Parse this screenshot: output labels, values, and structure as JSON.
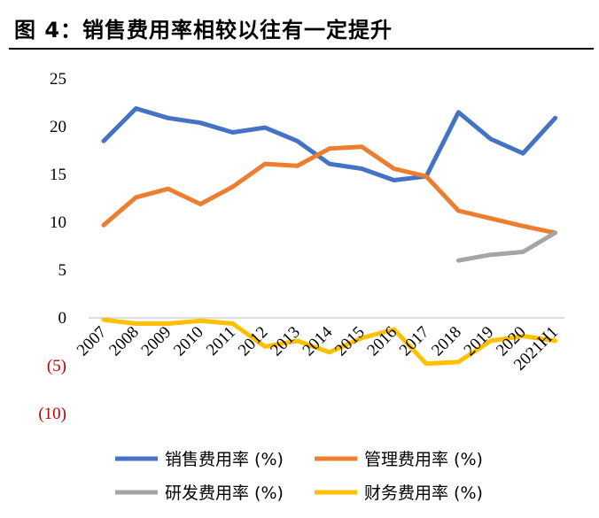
{
  "title": "图 4：销售费用率相较以往有一定提升",
  "chart_data": {
    "type": "line",
    "title": "图 4：销售费用率相较以往有一定提升",
    "xlabel": "",
    "ylabel": "",
    "ylim": [
      -10,
      25
    ],
    "yticks": [
      25,
      20,
      15,
      10,
      5,
      0,
      -5,
      -10
    ],
    "ytick_labels": [
      "25",
      "20",
      "15",
      "10",
      "5",
      "0",
      "(5)",
      "(10)"
    ],
    "grid": false,
    "legend_position": "bottom",
    "categories": [
      "2007",
      "2008",
      "2009",
      "2010",
      "2011",
      "2012",
      "2013",
      "2014",
      "2015",
      "2016",
      "2017",
      "2018",
      "2019",
      "2020",
      "2021H1"
    ],
    "series": [
      {
        "name": "销售费用率 (%)",
        "color": "#4472c4",
        "values": [
          18.5,
          21.9,
          20.9,
          20.4,
          19.4,
          19.9,
          18.5,
          16.1,
          15.6,
          14.4,
          14.8,
          21.5,
          18.7,
          17.2,
          20.9
        ]
      },
      {
        "name": "管理费用率 (%)",
        "color": "#ed7d31",
        "values": [
          9.7,
          12.6,
          13.5,
          11.9,
          13.7,
          16.1,
          15.9,
          17.7,
          17.9,
          15.6,
          14.8,
          11.2,
          10.4,
          9.6,
          8.9
        ]
      },
      {
        "name": "研发费用率 (%)",
        "color": "#a5a5a5",
        "values": [
          null,
          null,
          null,
          null,
          null,
          null,
          null,
          null,
          null,
          null,
          null,
          6.0,
          6.6,
          6.9,
          8.9
        ]
      },
      {
        "name": "财务费用率 (%)",
        "color": "#ffc000",
        "values": [
          -0.2,
          -0.6,
          -0.6,
          -0.3,
          -0.6,
          -3.0,
          -2.4,
          -3.6,
          -2.1,
          -1.2,
          -4.8,
          -4.6,
          -2.4,
          -1.9,
          -2.4
        ]
      }
    ]
  }
}
